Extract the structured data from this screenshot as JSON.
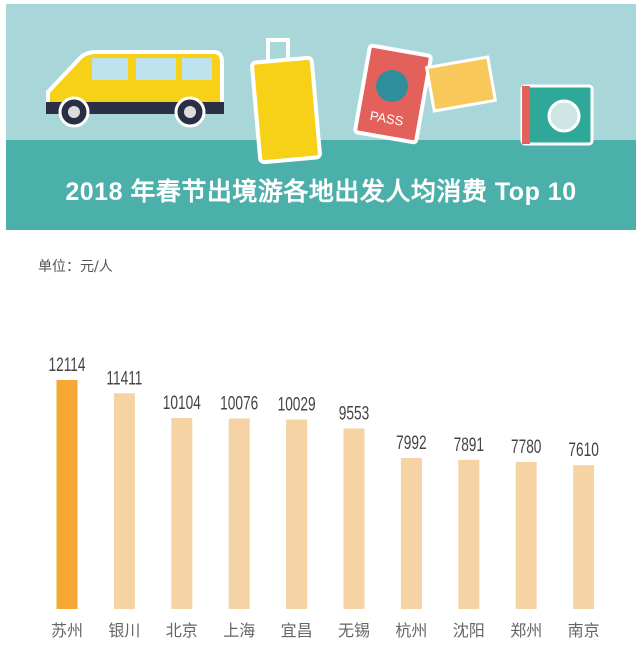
{
  "header": {
    "title": "2018 年春节出境游各地出发人均消费 Top 10",
    "passport_text": "PASS"
  },
  "colors": {
    "highlight": "#f6a734",
    "bar": "#f6d3a5",
    "sky": "#a9d6d9",
    "ground": "#4bb0a9"
  },
  "chart_data": {
    "type": "bar",
    "title": "2018 年春节出境游各地出发人均消费 Top 10",
    "unit_label": "单位：元/人",
    "categories": [
      "苏州",
      "银川",
      "北京",
      "上海",
      "宜昌",
      "无锡",
      "杭州",
      "沈阳",
      "郑州",
      "南京"
    ],
    "values": [
      12114,
      11411,
      10104,
      10076,
      10029,
      9553,
      7992,
      7891,
      7780,
      7610
    ],
    "highlight_index": 0,
    "ylim": [
      0,
      12114
    ],
    "grid": false
  }
}
